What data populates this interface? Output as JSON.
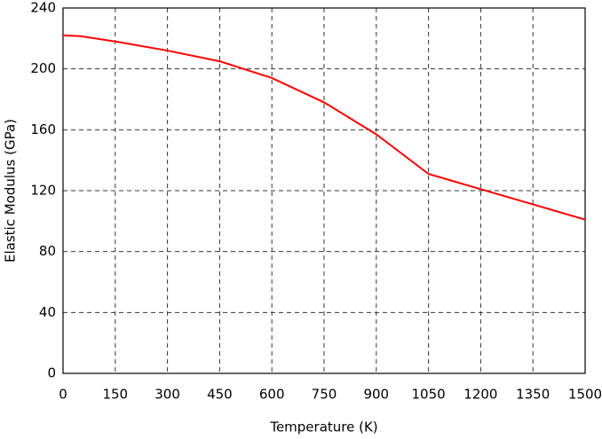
{
  "chart_data": {
    "type": "line",
    "x_label": "Temperature (K)",
    "y_label": "Elastic Modulus (GPa)",
    "x": [
      0,
      50,
      150,
      300,
      450,
      600,
      750,
      900,
      1050,
      1200,
      1350,
      1500
    ],
    "series": [
      {
        "color": "#ff0000",
        "values": [
          222,
          221.5,
          218,
          212,
          205,
          194,
          178,
          157,
          131,
          121,
          111,
          101
        ]
      }
    ],
    "xlim": [
      0,
      1500
    ],
    "xticks": [
      0,
      150,
      300,
      450,
      600,
      750,
      900,
      1050,
      1200,
      1350,
      1500
    ],
    "ylim": [
      0,
      240
    ],
    "yticks": [
      0,
      40,
      80,
      120,
      160,
      200,
      240
    ],
    "grid": true
  }
}
